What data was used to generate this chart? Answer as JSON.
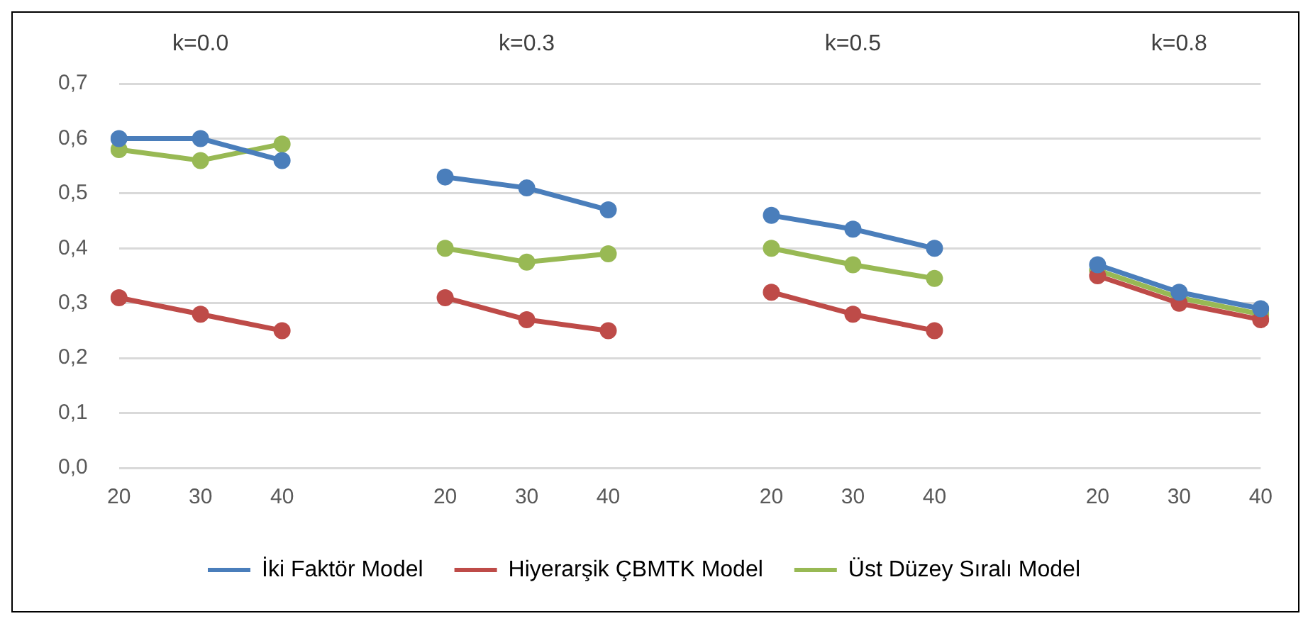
{
  "chart_data": {
    "type": "line",
    "categories": [
      "20",
      "30",
      "40",
      null,
      "20",
      "30",
      "40",
      null,
      "20",
      "30",
      "40",
      null,
      "20",
      "30",
      "40"
    ],
    "annotations": [
      "k=0.0",
      "k=0.3",
      "k=0.5",
      "k=0.8"
    ],
    "series": [
      {
        "name": "İki Faktör Model",
        "color": "#4a7ebb",
        "values": [
          0.6,
          0.6,
          0.56,
          null,
          0.53,
          0.51,
          0.47,
          null,
          0.46,
          0.435,
          0.4,
          null,
          0.37,
          0.32,
          0.29
        ]
      },
      {
        "name": "Hiyerarşik ÇBMTK Model",
        "color": "#be4b48",
        "values": [
          0.31,
          0.28,
          0.25,
          null,
          0.31,
          0.27,
          0.25,
          null,
          0.32,
          0.28,
          0.25,
          null,
          0.35,
          0.3,
          0.27
        ]
      },
      {
        "name": "Üst Düzey Sıralı Model",
        "color": "#98b954",
        "values": [
          0.58,
          0.56,
          0.59,
          null,
          0.4,
          0.375,
          0.39,
          null,
          0.4,
          0.37,
          0.345,
          null,
          0.36,
          0.31,
          0.28
        ]
      }
    ],
    "ylim": [
      0,
      0.7
    ],
    "yticks": [
      {
        "value": 0,
        "label": "0,0"
      },
      {
        "value": 0.1,
        "label": "0,1"
      },
      {
        "value": 0.2,
        "label": "0,2"
      },
      {
        "value": 0.3,
        "label": "0,3"
      },
      {
        "value": 0.4,
        "label": "0,4"
      },
      {
        "value": 0.5,
        "label": "0,5"
      },
      {
        "value": 0.6,
        "label": "0,6"
      },
      {
        "value": 0.7,
        "label": "0,7"
      }
    ],
    "grid": "y",
    "legend": "bottom",
    "marker": "circle",
    "line_style": "solid"
  }
}
